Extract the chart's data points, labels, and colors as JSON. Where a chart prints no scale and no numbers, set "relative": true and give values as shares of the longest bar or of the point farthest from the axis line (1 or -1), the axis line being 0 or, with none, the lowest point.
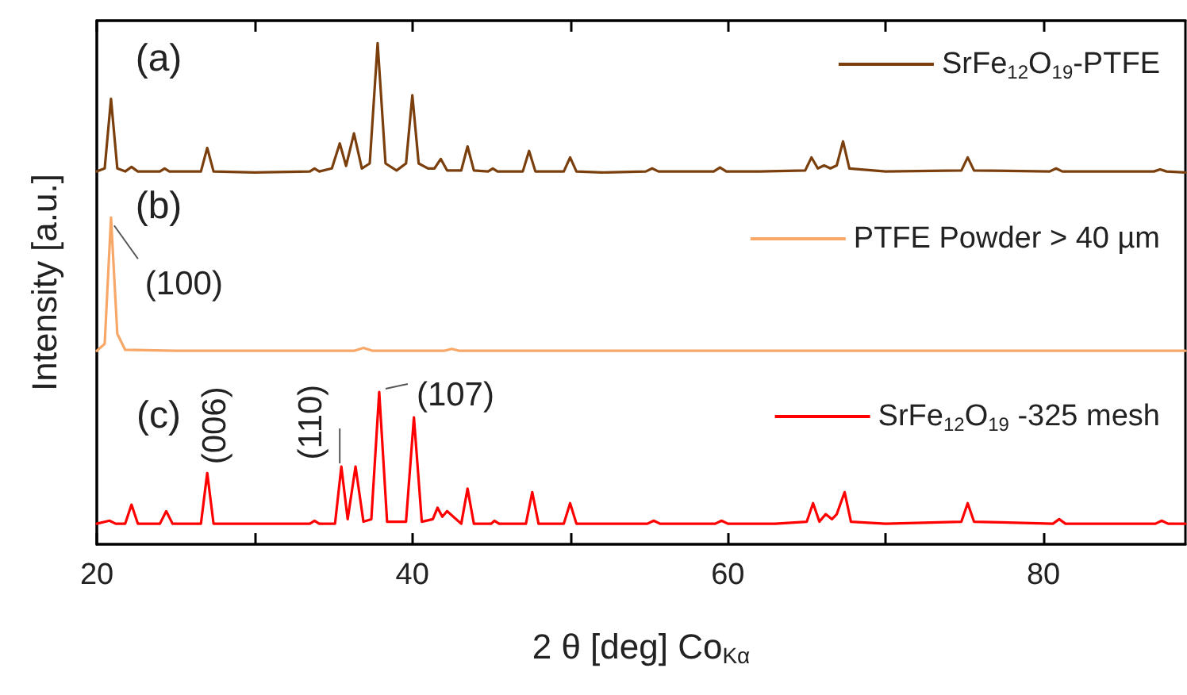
{
  "chart_data": {
    "type": "line",
    "relative": true,
    "xlabel": "2 θ [deg] Co$_{Kα}$",
    "ylabel": "Intensity [a.u.]",
    "xlim": [
      20,
      89
    ],
    "xticks": [
      20,
      {
        "value": 30,
        "label": null
      },
      40,
      {
        "value": 50,
        "label": null
      },
      60,
      {
        "value": 70,
        "label": null
      },
      80
    ],
    "legend": "right",
    "marker": "none",
    "line_style": "solid",
    "grid": false,
    "series": [
      {
        "name": "SrFe$_{12}$O$_{19}$-PTFE",
        "color": "#7b3f0e",
        "x": [
          20,
          20.5,
          20.9,
          21.3,
          21.8,
          22.2,
          22.6,
          24.0,
          24.3,
          24.6,
          26.6,
          27.0,
          27.4,
          30,
          33.5,
          33.8,
          34.1,
          34.9,
          35.4,
          35.8,
          36.3,
          36.8,
          37.3,
          37.8,
          38.3,
          39.0,
          39.6,
          40.0,
          40.4,
          41.0,
          41.4,
          41.8,
          42.2,
          43.1,
          43.5,
          43.9,
          44.8,
          45.1,
          45.4,
          47.0,
          47.4,
          47.8,
          49.6,
          50.0,
          50.4,
          52,
          54.8,
          55.2,
          55.6,
          59.1,
          59.5,
          59.9,
          62,
          64.9,
          65.3,
          65.7,
          66.1,
          66.5,
          66.9,
          67.3,
          67.7,
          70,
          74.8,
          75.2,
          75.6,
          80.4,
          80.8,
          81.2,
          87.0,
          87.4,
          87.8,
          89
        ],
        "values": [
          0.744,
          0.75,
          0.889,
          0.75,
          0.744,
          0.753,
          0.744,
          0.744,
          0.75,
          0.744,
          0.744,
          0.791,
          0.744,
          0.742,
          0.744,
          0.75,
          0.744,
          0.75,
          0.8,
          0.755,
          0.82,
          0.75,
          0.76,
          1.0,
          0.76,
          0.746,
          0.76,
          0.896,
          0.76,
          0.75,
          0.75,
          0.769,
          0.746,
          0.746,
          0.794,
          0.746,
          0.744,
          0.75,
          0.744,
          0.744,
          0.785,
          0.744,
          0.744,
          0.772,
          0.744,
          0.742,
          0.744,
          0.75,
          0.744,
          0.744,
          0.752,
          0.744,
          0.744,
          0.746,
          0.772,
          0.75,
          0.756,
          0.75,
          0.756,
          0.804,
          0.75,
          0.744,
          0.746,
          0.772,
          0.746,
          0.744,
          0.75,
          0.744,
          0.744,
          0.748,
          0.744,
          0.742
        ]
      },
      {
        "name": "PTFE Powder > 40 µm",
        "color": "#f7a868",
        "x": [
          20,
          20.5,
          20.9,
          21.3,
          21.8,
          25,
          30,
          36.3,
          36.9,
          37.5,
          42,
          42.5,
          43,
          50,
          60,
          70,
          80,
          89
        ],
        "values": [
          0.386,
          0.4,
          0.652,
          0.42,
          0.388,
          0.386,
          0.386,
          0.386,
          0.392,
          0.386,
          0.386,
          0.39,
          0.386,
          0.386,
          0.386,
          0.386,
          0.386,
          0.386
        ]
      },
      {
        "name": "SrFe$_{12}$O$_{19}$ -325 mesh",
        "color": "#ff0000",
        "x": [
          20,
          20.8,
          21.2,
          21.8,
          22.2,
          22.6,
          24.0,
          24.4,
          24.8,
          26.6,
          27.0,
          27.4,
          30,
          33.5,
          33.8,
          34.1,
          35.1,
          35.5,
          35.9,
          36.4,
          36.9,
          37.4,
          37.9,
          38.4,
          39.6,
          40.1,
          40.6,
          41.3,
          41.6,
          41.9,
          42.2,
          43.1,
          43.5,
          43.9,
          45.0,
          45.2,
          45.5,
          47.2,
          47.6,
          48.0,
          49.6,
          50.0,
          50.4,
          54.9,
          55.3,
          55.7,
          59.2,
          59.6,
          60.0,
          63,
          65.0,
          65.4,
          65.8,
          66.2,
          66.6,
          66.9,
          67.4,
          67.8,
          70,
          74.8,
          75.2,
          75.6,
          80.6,
          81.0,
          81.4,
          87.1,
          87.5,
          87.9,
          89
        ],
        "values": [
          0.041,
          0.047,
          0.041,
          0.041,
          0.079,
          0.041,
          0.041,
          0.066,
          0.041,
          0.041,
          0.142,
          0.041,
          0.041,
          0.041,
          0.047,
          0.041,
          0.041,
          0.155,
          0.05,
          0.155,
          0.045,
          0.05,
          0.304,
          0.045,
          0.045,
          0.253,
          0.045,
          0.05,
          0.073,
          0.055,
          0.066,
          0.041,
          0.111,
          0.041,
          0.041,
          0.047,
          0.041,
          0.041,
          0.104,
          0.041,
          0.041,
          0.082,
          0.041,
          0.041,
          0.047,
          0.041,
          0.041,
          0.047,
          0.041,
          0.041,
          0.045,
          0.082,
          0.045,
          0.06,
          0.05,
          0.06,
          0.104,
          0.045,
          0.041,
          0.045,
          0.082,
          0.045,
          0.041,
          0.05,
          0.041,
          0.041,
          0.047,
          0.041,
          0.041
        ]
      }
    ],
    "annotations": [
      "(a)",
      "(b)",
      "(c)",
      {
        "text": "(100)",
        "x": 20.9,
        "y": 0.652
      },
      {
        "text": "(006)",
        "x": 27.0,
        "y": 0.142
      },
      {
        "text": "(110)",
        "x": 35.5,
        "y": 0.155
      },
      {
        "text": "(107)",
        "x": 37.9,
        "y": 0.304
      }
    ]
  }
}
